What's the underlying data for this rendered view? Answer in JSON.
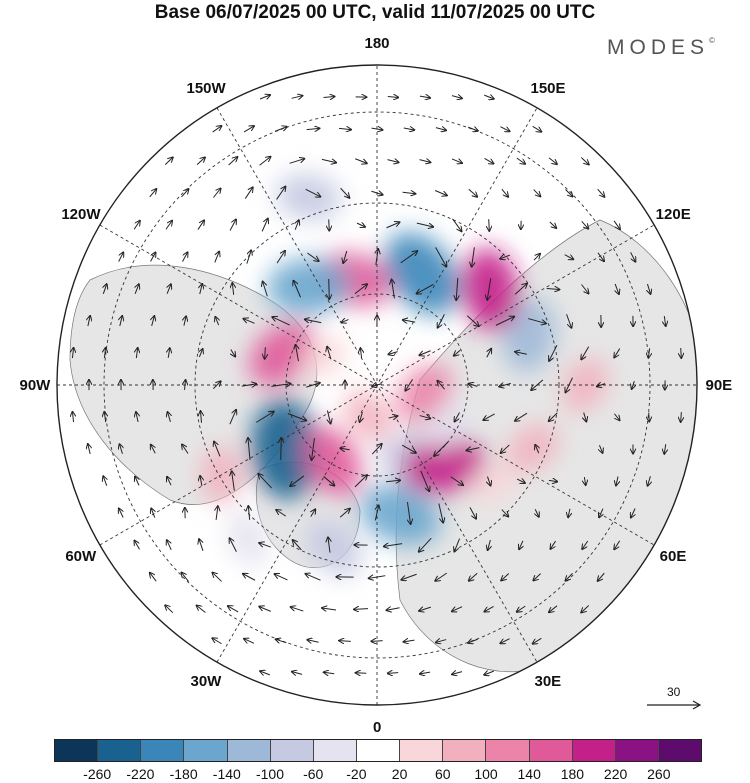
{
  "title": "Base 06/07/2025 00 UTC, valid 11/07/2025 00 UTC",
  "brand": "MODES",
  "brand_mark": "©",
  "longitude_labels": [
    {
      "key": "lon-180",
      "text": "180",
      "angle": 0
    },
    {
      "key": "lon-150e",
      "text": "150E",
      "angle": 30
    },
    {
      "key": "lon-120e",
      "text": "120E",
      "angle": 60
    },
    {
      "key": "lon-90e",
      "text": "90E",
      "angle": 90
    },
    {
      "key": "lon-60e",
      "text": "60E",
      "angle": 120
    },
    {
      "key": "lon-30e",
      "text": "30E",
      "angle": 150
    },
    {
      "key": "lon-0",
      "text": "0",
      "angle": 180
    },
    {
      "key": "lon-30w",
      "text": "30W",
      "angle": 210
    },
    {
      "key": "lon-60w",
      "text": "60W",
      "angle": 240
    },
    {
      "key": "lon-90w",
      "text": "90W",
      "angle": 270
    },
    {
      "key": "lon-120w",
      "text": "120W",
      "angle": 300
    },
    {
      "key": "lon-150w",
      "text": "150W",
      "angle": 330
    }
  ],
  "vector_reference": "30",
  "colorbar": {
    "ticks": [
      "-260",
      "-220",
      "-180",
      "-140",
      "-100",
      "-60",
      "-20",
      "20",
      "60",
      "100",
      "140",
      "180",
      "220",
      "260"
    ],
    "colors": [
      "#0d3559",
      "#19618f",
      "#3b86b9",
      "#6aa6cd",
      "#9eb9d8",
      "#c5cae2",
      "#e4e3ef",
      "#ffffff",
      "#f8d6d9",
      "#f2b0bf",
      "#eb84a8",
      "#e05a9a",
      "#c42089",
      "#8a1282",
      "#5e0b6e"
    ]
  },
  "anomaly_field": [
    {
      "lon": 170,
      "lat": 57,
      "value": -180
    },
    {
      "lon": 155,
      "lat": 70,
      "value": -100
    },
    {
      "lon": 140,
      "lat": 64,
      "value": 180
    },
    {
      "lon": 120,
      "lat": 70,
      "value": -60
    },
    {
      "lon": 100,
      "lat": 78,
      "value": 100
    },
    {
      "lon": 112,
      "lat": 48,
      "value": 60
    },
    {
      "lon": 72,
      "lat": 50,
      "value": -140
    },
    {
      "lon": 50,
      "lat": 53,
      "value": 180
    },
    {
      "lon": 22,
      "lat": 60,
      "value": -220
    },
    {
      "lon": -12,
      "lat": 63,
      "value": 140
    },
    {
      "lon": -35,
      "lat": 60,
      "value": -180
    },
    {
      "lon": -72,
      "lat": 65,
      "value": 140
    },
    {
      "lon": -62,
      "lat": 75,
      "value": 20
    },
    {
      "lon": -125,
      "lat": 62,
      "value": -260
    },
    {
      "lon": -150,
      "lat": 68,
      "value": 140
    },
    {
      "lon": -165,
      "lat": 82,
      "value": 60
    },
    {
      "lon": -165,
      "lat": 48,
      "value": -100
    },
    {
      "lon": -140,
      "lat": 40,
      "value": -60
    },
    {
      "lon": -120,
      "lat": 45,
      "value": 60
    },
    {
      "lon": -20,
      "lat": 40,
      "value": -100
    },
    {
      "lon": 130,
      "lat": 52,
      "value": 20
    },
    {
      "lon": 90,
      "lat": 38,
      "value": 60
    }
  ]
}
